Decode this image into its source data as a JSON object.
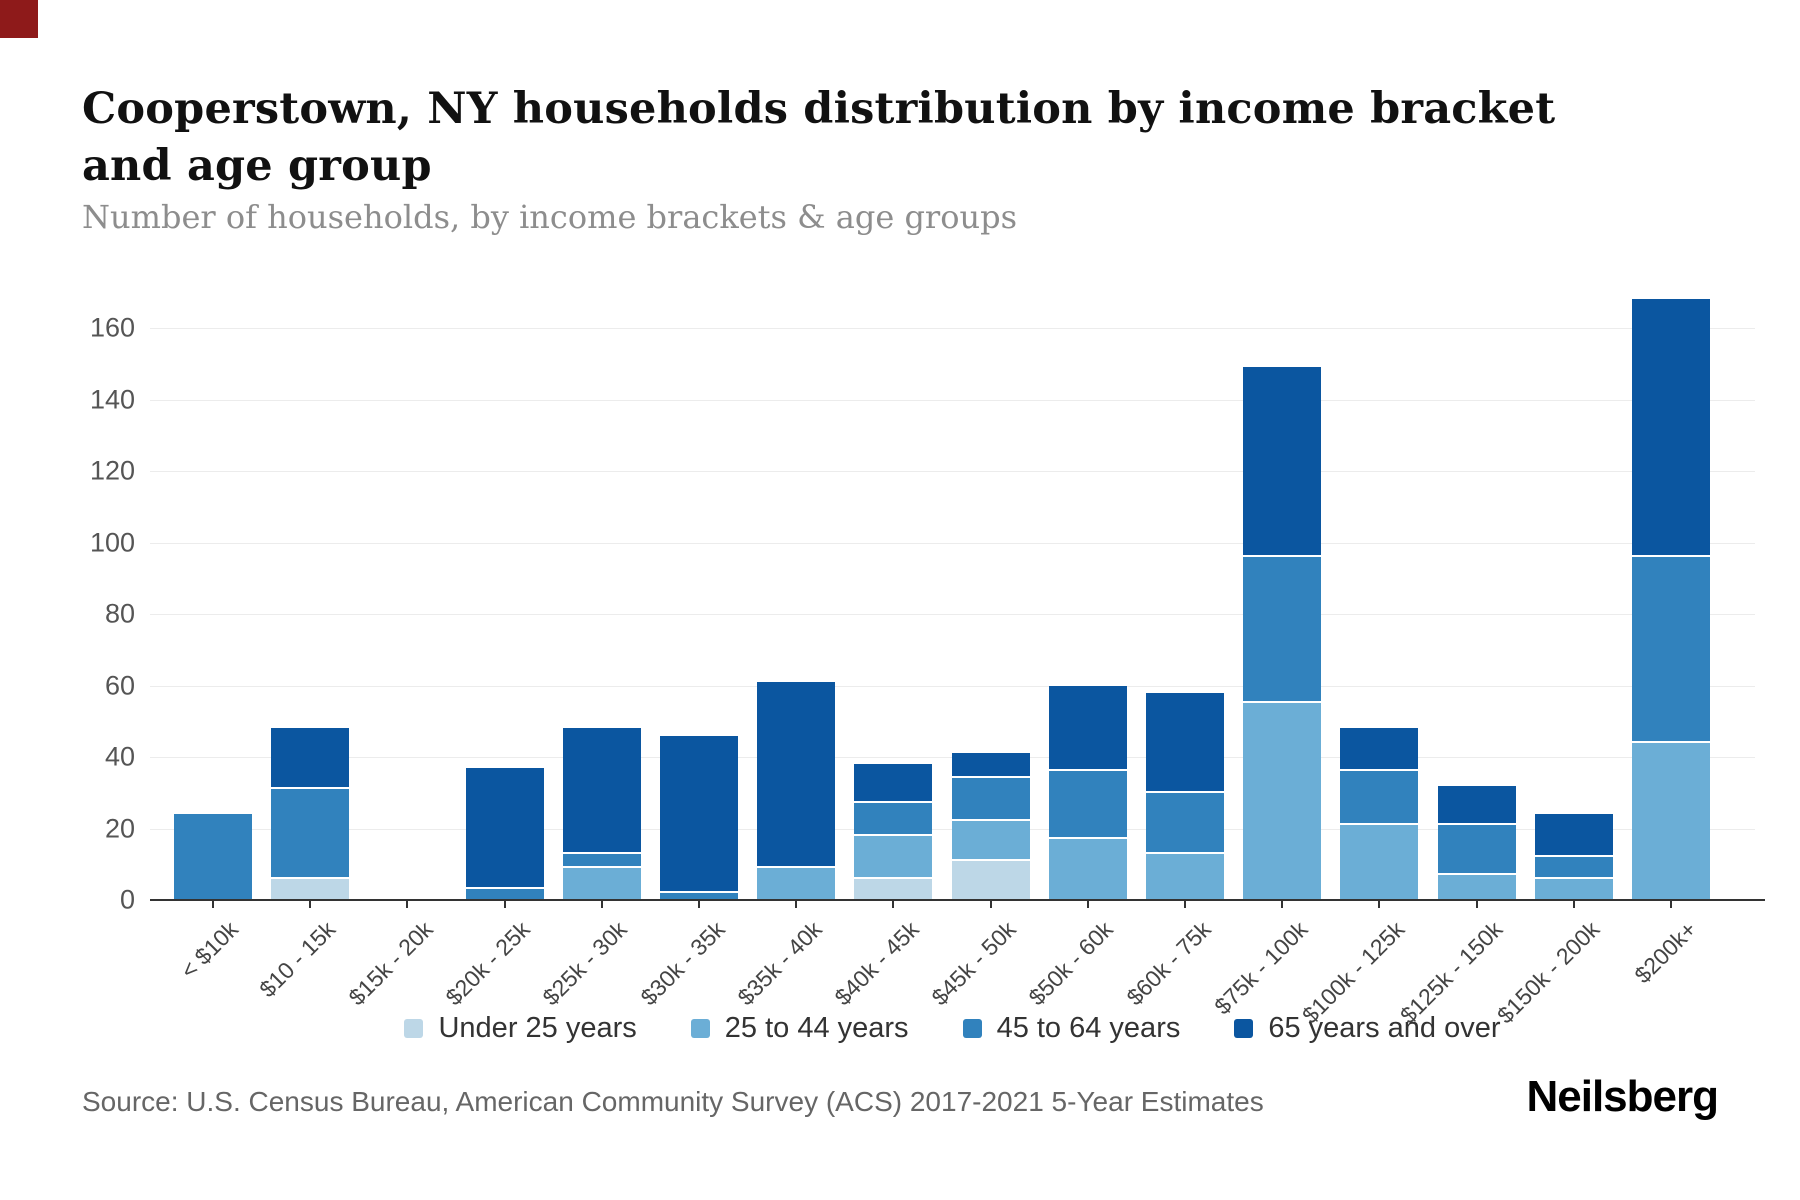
{
  "brand": {
    "corner_mark_color": "#8e1a1a",
    "logo_text": "Neilsberg"
  },
  "chart_data": {
    "type": "bar",
    "stacked": true,
    "title": "Cooperstown, NY households distribution by income bracket and age group",
    "subtitle": "Number of households, by income brackets & age groups",
    "source": "Source: U.S. Census Bureau, American Community Survey (ACS) 2017-2021 5-Year Estimates",
    "xlabel": "",
    "ylabel": "",
    "ylim": [
      0,
      160
    ],
    "yticks": [
      0,
      20,
      40,
      60,
      80,
      100,
      120,
      140,
      160
    ],
    "grid": true,
    "legend_position": "bottom",
    "categories": [
      "< $10k",
      "$10 - 15k",
      "$15k - 20k",
      "$20k - 25k",
      "$25k - 30k",
      "$30k - 35k",
      "$35k - 40k",
      "$40k - 45k",
      "$45k - 50k",
      "$50k - 60k",
      "$60k - 75k",
      "$75k - 100k",
      "$100k - 125k",
      "$125k - 150k",
      "$150k - 200k",
      "$200k+"
    ],
    "series": [
      {
        "name": "Under 25 years",
        "color": "#bdd7e7",
        "values": [
          0,
          6,
          0,
          0,
          0,
          0,
          0,
          6,
          11,
          0,
          0,
          0,
          0,
          0,
          0,
          0
        ]
      },
      {
        "name": "25 to 44 years",
        "color": "#6baed6",
        "values": [
          0,
          0,
          0,
          0,
          9,
          0,
          9,
          12,
          11,
          17,
          13,
          55,
          21,
          7,
          6,
          44
        ]
      },
      {
        "name": "45 to 64 years",
        "color": "#3182bd",
        "values": [
          24,
          25,
          0,
          3,
          4,
          2,
          0,
          9,
          12,
          19,
          17,
          41,
          15,
          14,
          6,
          52
        ]
      },
      {
        "name": "65 years and over",
        "color": "#0b56a0",
        "values": [
          0,
          17,
          0,
          34,
          35,
          44,
          52,
          11,
          7,
          24,
          28,
          53,
          12,
          11,
          12,
          72
        ]
      }
    ],
    "totals": [
      24,
      48,
      0,
      37,
      48,
      46,
      61,
      38,
      41,
      60,
      58,
      149,
      48,
      32,
      24,
      168
    ]
  }
}
